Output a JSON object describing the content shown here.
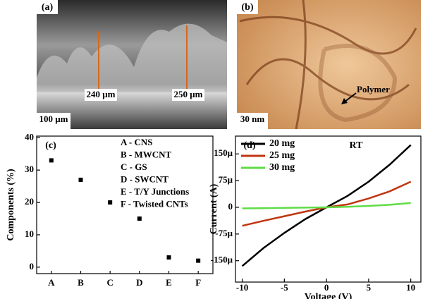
{
  "images": [
    {
      "label": "(a)",
      "annotations": [
        "240 μm",
        "250 μm"
      ],
      "scale_bar": "100 μm"
    },
    {
      "label": "(b)",
      "annotations": [
        "Polymer"
      ],
      "scale_bar": "30 nm"
    }
  ],
  "chart_data": [
    {
      "type": "scatter",
      "panel_label": "(c)",
      "ylabel": "Components (%)",
      "categories": [
        "A",
        "B",
        "C",
        "D",
        "E",
        "F"
      ],
      "values": [
        33,
        27,
        20,
        15,
        3,
        2
      ],
      "color": "#000000",
      "ylim": [
        -2,
        40.5
      ],
      "yticks": [
        0,
        10,
        20,
        30,
        40
      ],
      "annotations": [
        "A - CNS",
        "B - MWCNT",
        "C - GS",
        "D - SWCNT",
        "E - T/Y Junctions",
        "F - Twisted CNTs"
      ]
    },
    {
      "type": "line",
      "panel_label": "(d)",
      "xlabel": "Voltage (V)",
      "ylabel": "Current (A)",
      "annotation": "RT",
      "legend": "upper left",
      "x": [
        -10,
        -7.5,
        -5,
        -2.5,
        0,
        2.5,
        5,
        7.5,
        10
      ],
      "series": [
        {
          "name": "20 mg",
          "color": "#000000",
          "values": [
            -0.000165,
            -0.000115,
            -7.2e-05,
            -3.3e-05,
            0,
            3.2e-05,
            7.2e-05,
            0.00012,
            0.000175
          ]
        },
        {
          "name": "25 mg",
          "color": "#c0350f",
          "values": [
            -5.2e-05,
            -3.8e-05,
            -2.5e-05,
            -1.2e-05,
            0,
            8e-06,
            2.5e-05,
            4.5e-05,
            7.2e-05
          ]
        },
        {
          "name": "30 mg",
          "color": "#5fdc46",
          "values": [
            -3e-06,
            -2.5e-06,
            -1.5e-06,
            -8e-07,
            0,
            1.5e-06,
            4e-06,
            7e-06,
            1.2e-05
          ]
        }
      ],
      "xlim": [
        -10.8,
        11.2
      ],
      "xticks": [
        -10,
        -5,
        0,
        5,
        10
      ],
      "ylim": [
        -0.00021,
        0.0002
      ],
      "yticks": [
        {
          "value": -0.00015,
          "label": "-150μ"
        },
        {
          "value": -7.5e-05,
          "label": "-75μ"
        },
        0,
        {
          "value": 7.5e-05,
          "label": "75μ"
        },
        {
          "value": 0.00015,
          "label": "150μ"
        }
      ]
    }
  ]
}
